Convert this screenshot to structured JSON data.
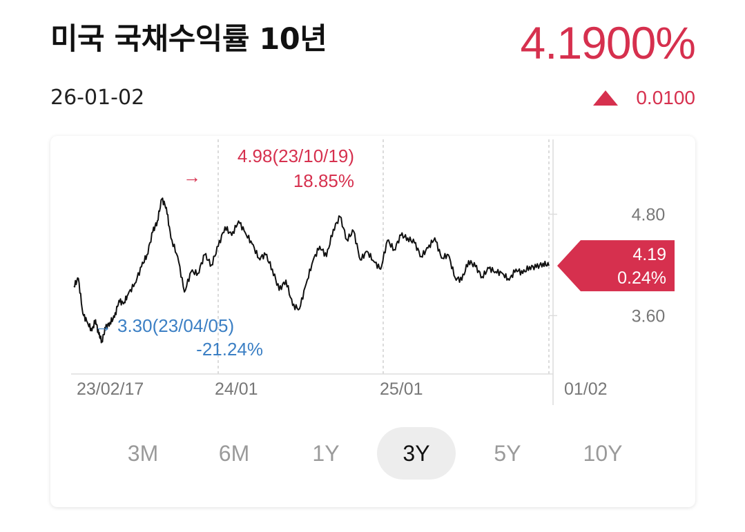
{
  "header": {
    "title": "미국 국채수익률 10년",
    "date": "26-01-02",
    "price": "4.1900%",
    "change": "0.0100",
    "change_direction": "up",
    "accent_color": "#d6304e"
  },
  "annotations": {
    "max_label": "4.98(23/10/19)",
    "max_change": "18.85%",
    "min_label": "3.30(23/04/05)",
    "min_change": "-21.24%",
    "current_value": "4.19",
    "current_change": "0.24%",
    "max_color": "#d6304e",
    "min_color": "#3b7fc4"
  },
  "periods": [
    {
      "label": "3M",
      "active": false
    },
    {
      "label": "6M",
      "active": false
    },
    {
      "label": "1Y",
      "active": false
    },
    {
      "label": "3Y",
      "active": true
    },
    {
      "label": "5Y",
      "active": false
    },
    {
      "label": "10Y",
      "active": false
    }
  ],
  "chart_data": {
    "type": "line",
    "title": "",
    "x_tick_labels": [
      "23/02/17",
      "24/01",
      "25/01",
      "01/02"
    ],
    "y_tick_labels": [
      "4.80",
      "3.60"
    ],
    "y_ticks": [
      4.8,
      3.6
    ],
    "ylim": [
      2.95,
      5.4
    ],
    "x_range": [
      0,
      1053
    ],
    "series": [
      {
        "x": [
          0,
          10,
          20,
          30,
          40,
          48,
          55,
          62,
          70,
          80,
          90,
          100,
          110,
          120,
          135,
          150,
          162,
          175,
          185,
          195,
          205,
          215,
          230,
          245,
          260,
          275,
          290,
          305,
          320,
          335,
          350,
          365,
          380,
          395,
          410,
          425,
          440,
          455,
          470,
          485,
          500,
          515,
          530,
          545,
          560,
          575,
          590,
          605,
          620,
          635,
          650,
          665,
          680,
          695,
          710,
          725,
          740,
          755,
          770,
          785,
          800,
          815,
          830,
          845,
          860,
          875,
          890,
          905,
          920,
          935,
          950,
          965,
          980,
          995,
          1010,
          1025,
          1040,
          1053
        ],
        "values": [
          3.95,
          4.04,
          3.62,
          3.52,
          3.42,
          3.55,
          3.38,
          3.3,
          3.45,
          3.52,
          3.58,
          3.78,
          3.74,
          3.85,
          3.98,
          4.18,
          4.32,
          4.59,
          4.72,
          4.98,
          4.88,
          4.52,
          4.3,
          3.88,
          4.12,
          4.1,
          4.32,
          4.2,
          4.42,
          4.65,
          4.55,
          4.72,
          4.58,
          4.45,
          4.28,
          4.32,
          4.15,
          3.9,
          4.02,
          3.72,
          3.68,
          3.98,
          4.25,
          4.42,
          4.3,
          4.62,
          4.77,
          4.5,
          4.6,
          4.26,
          4.36,
          4.24,
          4.15,
          4.49,
          4.38,
          4.55,
          4.52,
          4.46,
          4.3,
          4.4,
          4.52,
          4.28,
          4.32,
          4.05,
          4.02,
          4.25,
          4.18,
          4.06,
          4.16,
          4.12,
          4.1,
          4.02,
          4.15,
          4.1,
          4.18,
          4.17,
          4.22,
          4.19
        ]
      }
    ]
  }
}
